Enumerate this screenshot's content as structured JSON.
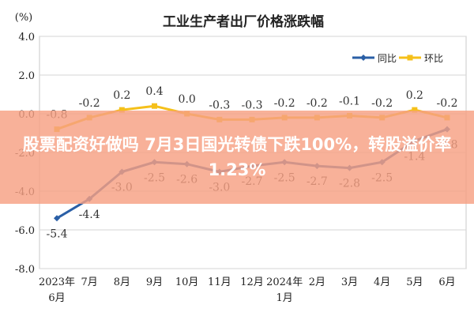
{
  "chart_data": {
    "type": "line",
    "title": "工业生产者出厂价格涨跌幅",
    "yunit": "(%)",
    "ylim": [
      -8.0,
      4.0
    ],
    "yticks": [
      "4.0",
      "2.0",
      "0.0",
      "-2.0",
      "-4.0",
      "-6.0",
      "-8.0"
    ],
    "grid": true,
    "legend_position": "top-right",
    "categories": [
      "2023年 6月",
      "7月",
      "8月",
      "9月",
      "10月",
      "11月",
      "12月",
      "2024年 1月",
      "2月",
      "3月",
      "4月",
      "5月",
      "6月"
    ],
    "series": [
      {
        "name": "同比",
        "color": "#2a5fa6",
        "values": [
          -5.4,
          -4.4,
          -3.0,
          -2.5,
          -2.6,
          -3.0,
          -2.7,
          -2.5,
          -2.7,
          -2.8,
          -2.5,
          -1.4,
          -0.8
        ],
        "labels": [
          "-5.4",
          "-4.4",
          "-3.0",
          "-2.5",
          "-2.6",
          "-3.0",
          "-2.7",
          "-2.5",
          "-2.7",
          "-2.8",
          "-2.5",
          "-1.4",
          "-0.8"
        ]
      },
      {
        "name": "环比",
        "color": "#f5c01a",
        "values": [
          -0.8,
          -0.2,
          0.2,
          0.4,
          0.0,
          -0.3,
          -0.3,
          -0.2,
          -0.2,
          -0.1,
          -0.2,
          0.2,
          -0.2
        ],
        "labels": [
          "-0.8",
          "-0.2",
          "0.2",
          "0.4",
          "0.0",
          "-0.3",
          "-0.3",
          "-0.2",
          "-0.2",
          "-0.1",
          "-0.2",
          "0.2",
          "-0.2"
        ]
      }
    ]
  },
  "banner": {
    "headline": "股票配资好做吗 7月3日国光转债下跌100%，转股溢价率1.23%"
  }
}
